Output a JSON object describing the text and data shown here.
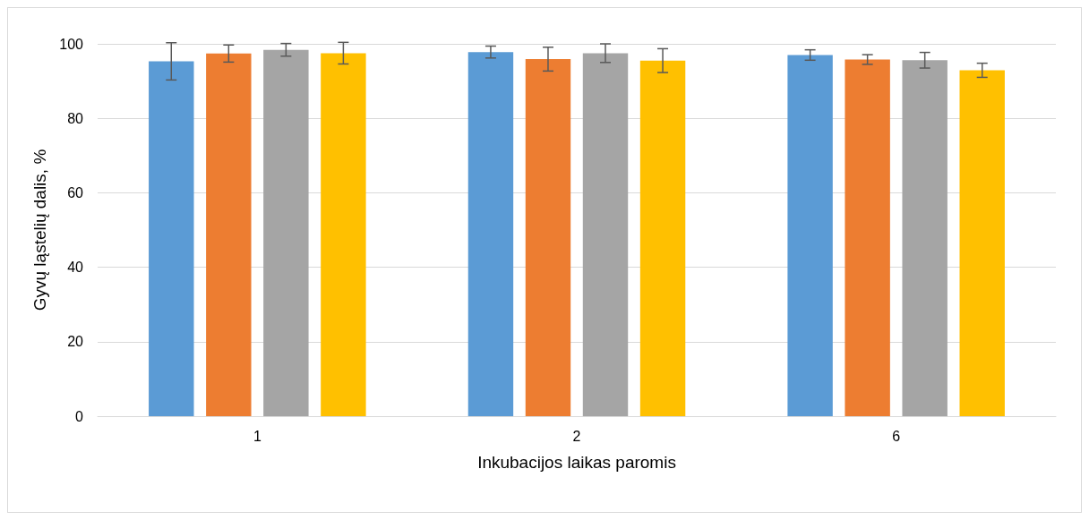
{
  "chart_data": {
    "type": "bar",
    "xlabel": "Inkubacijos laikas paromis",
    "ylabel": "Gyvų ląstelių dalis, %",
    "categories": [
      "1",
      "2",
      "6"
    ],
    "series": [
      {
        "color": "#5b9bd5",
        "values": [
          95.3,
          97.8,
          97.0
        ],
        "errors": [
          5.0,
          1.6,
          1.4
        ]
      },
      {
        "color": "#ed7d31",
        "values": [
          97.4,
          95.9,
          95.8
        ],
        "errors": [
          2.3,
          3.2,
          1.3
        ]
      },
      {
        "color": "#a5a5a5",
        "values": [
          98.4,
          97.5,
          95.6
        ],
        "errors": [
          1.7,
          2.5,
          2.1
        ]
      },
      {
        "color": "#ffc000",
        "values": [
          97.5,
          95.5,
          92.9
        ],
        "errors": [
          2.9,
          3.2,
          1.9
        ]
      }
    ],
    "ylim": [
      0,
      100
    ],
    "yticks": [
      0,
      20,
      40,
      60,
      80,
      100
    ],
    "grid": "y",
    "legend": false
  }
}
